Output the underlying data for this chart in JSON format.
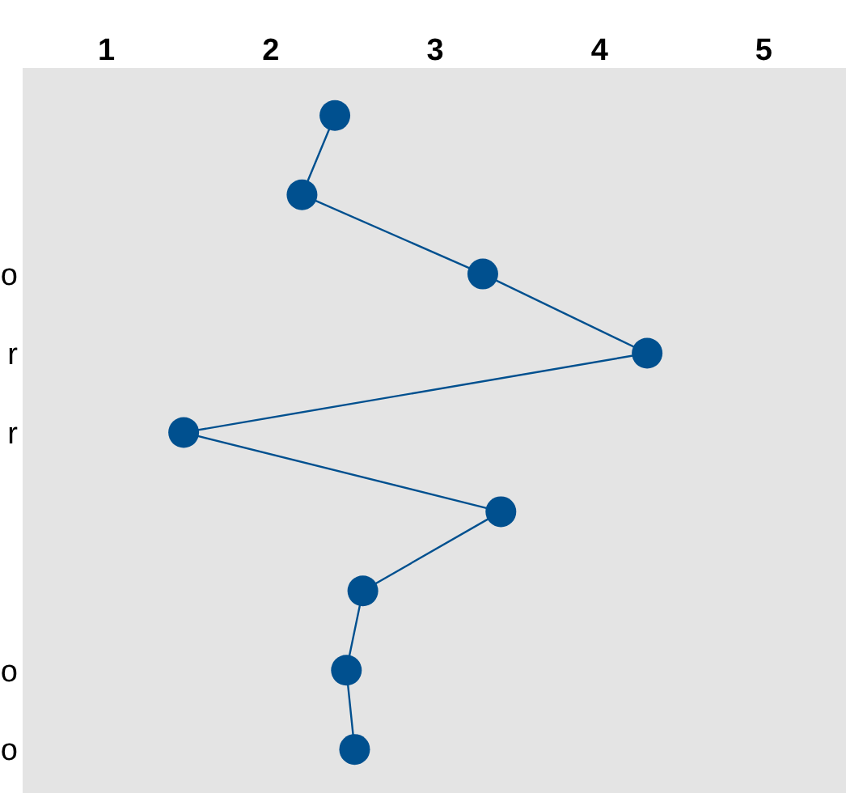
{
  "chart_data": {
    "type": "line",
    "orientation": "horizontal",
    "categories": [
      null,
      null,
      "o",
      "r",
      "r",
      null,
      null,
      "o",
      "o"
    ],
    "series": [
      {
        "color": "#00508f",
        "values": [
          2.39,
          2.19,
          3.29,
          4.29,
          1.47,
          3.4,
          2.56,
          2.46,
          2.51
        ]
      }
    ],
    "xlim": [
      0.49,
      5.5
    ],
    "xticks": [
      1,
      2,
      3,
      4,
      5
    ],
    "marker": "circle",
    "grid": false
  }
}
